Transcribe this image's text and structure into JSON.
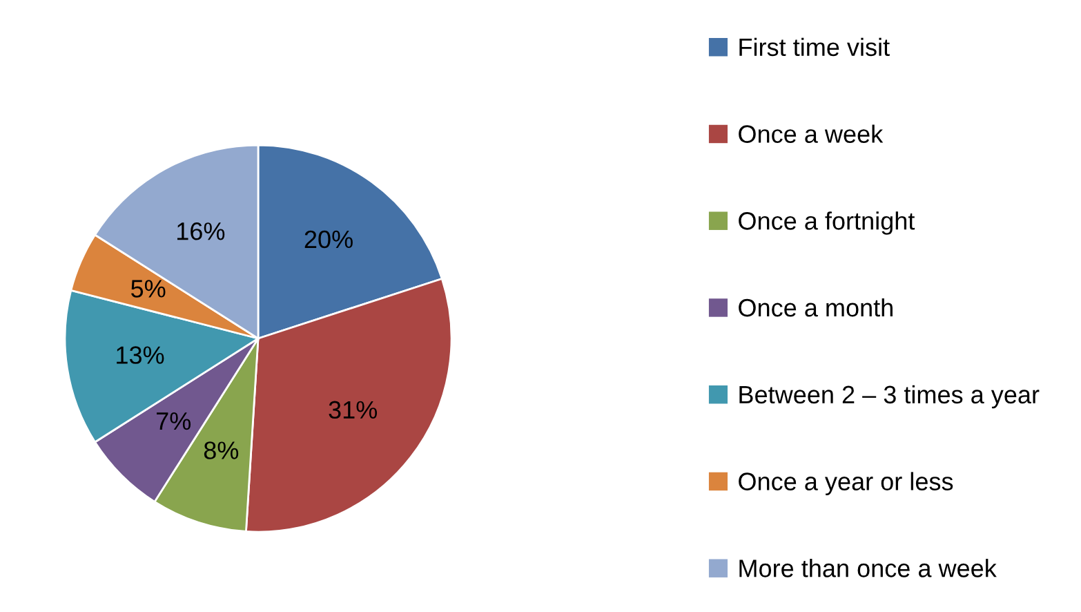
{
  "chart_data": {
    "type": "pie",
    "categories": [
      "First time visit",
      "Once a week",
      "Once a fortnight",
      "Once a month",
      "Between 2 – 3 times a year",
      "Once a year or less",
      "More than once a week"
    ],
    "values": [
      20,
      31,
      8,
      7,
      13,
      5,
      16
    ],
    "colors": [
      "#4572a7",
      "#aa4643",
      "#89a54e",
      "#71588f",
      "#4198af",
      "#db843d",
      "#93a9cf"
    ],
    "value_labels": [
      "20%",
      "31%",
      "8%",
      "7%",
      "13%",
      "5%",
      "16%"
    ],
    "legend": "right"
  }
}
